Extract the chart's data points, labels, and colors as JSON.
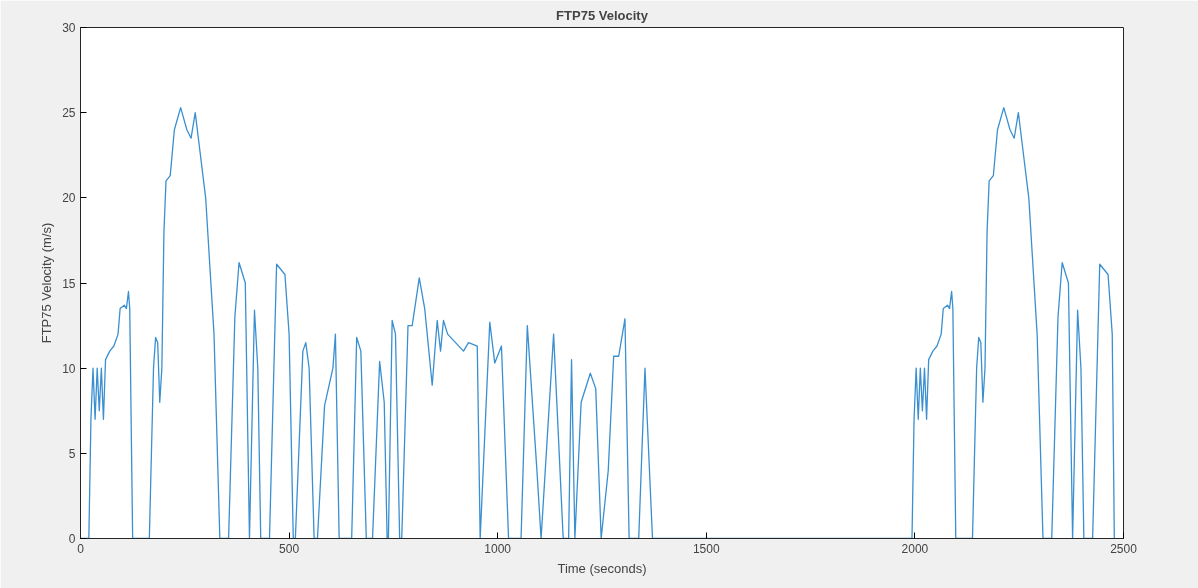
{
  "chart_data": {
    "type": "line",
    "title": "FTP75 Velocity",
    "xlabel": "Time (seconds)",
    "ylabel": "FTP75 Velocity (m/s)",
    "xlim": [
      0,
      2500
    ],
    "ylim": [
      0,
      30
    ],
    "xticks": [
      0,
      500,
      1000,
      1500,
      2000,
      2500
    ],
    "yticks": [
      0,
      5,
      10,
      15,
      20,
      25,
      30
    ],
    "grid": false,
    "marker": "none",
    "line_style": "solid",
    "series": [
      {
        "color": "#3a8fd0",
        "x": [
          0,
          20,
          25,
          30,
          35,
          40,
          45,
          50,
          55,
          60,
          70,
          80,
          90,
          95,
          105,
          110,
          115,
          118,
          125,
          165,
          175,
          180,
          185,
          190,
          195,
          200,
          205,
          215,
          225,
          240,
          255,
          265,
          275,
          285,
          300,
          320,
          334,
          355,
          370,
          380,
          395,
          405,
          417,
          425,
          432,
          453,
          470,
          490,
          500,
          510,
          515,
          533,
          540,
          548,
          560,
          568,
          585,
          605,
          611,
          620,
          650,
          662,
          672,
          685,
          700,
          717,
          728,
          735,
          738,
          747,
          755,
          765,
          770,
          785,
          795,
          812,
          825,
          843,
          855,
          863,
          870,
          880,
          918,
          930,
          951,
          958,
          981,
          993,
          1009,
          1026,
          1056,
          1071,
          1094,
          1104,
          1134,
          1157,
          1170,
          1177,
          1185,
          1200,
          1222,
          1235,
          1248,
          1265,
          1278,
          1290,
          1305,
          1315,
          1338,
          1353,
          1371,
          1993,
          1998,
          2003,
          2008,
          2013,
          2018,
          2023,
          2028,
          2033,
          2043,
          2053,
          2063,
          2068,
          2078,
          2083,
          2088,
          2091,
          2098,
          2138,
          2148,
          2153,
          2158,
          2163,
          2168,
          2173,
          2178,
          2188,
          2198,
          2213,
          2228,
          2238,
          2248,
          2258,
          2273,
          2293,
          2307,
          2328,
          2343,
          2353,
          2368,
          2378,
          2390,
          2398,
          2405,
          2426,
          2443,
          2463,
          2473,
          2478
        ],
        "values": [
          0,
          0,
          7,
          10,
          7,
          10,
          7.5,
          10,
          7,
          10.5,
          11,
          11.3,
          12,
          13.5,
          13.7,
          13.5,
          14.5,
          13.5,
          0,
          0,
          10,
          11.8,
          11.5,
          8,
          10,
          18,
          21,
          21.3,
          24,
          25.3,
          24,
          23.5,
          25,
          23,
          20,
          12,
          0,
          0,
          13,
          16.2,
          15,
          0,
          13.4,
          10,
          0,
          0,
          16.1,
          15.5,
          12,
          0,
          0,
          11,
          11.5,
          10,
          0,
          0,
          7.8,
          10,
          12,
          0,
          0,
          11.8,
          11,
          0,
          0,
          10.4,
          8,
          0,
          0,
          12.8,
          12,
          0,
          0,
          12.5,
          12.5,
          15.3,
          13.5,
          9,
          12.8,
          11,
          12.8,
          12,
          11,
          11.5,
          11.3,
          0,
          12.7,
          10.3,
          11.3,
          0,
          0,
          12.5,
          4,
          0,
          12,
          0,
          0,
          10.5,
          0,
          8,
          9.7,
          8.8,
          0,
          4,
          10.7,
          10.7,
          12.9,
          0,
          0,
          10,
          0,
          0,
          7,
          10,
          7,
          10,
          7.5,
          10,
          7,
          10.5,
          11,
          11.3,
          12,
          13.5,
          13.7,
          13.5,
          14.5,
          13.5,
          0,
          0,
          10,
          11.8,
          11.5,
          8,
          10,
          18,
          21,
          21.3,
          24,
          25.3,
          24,
          23.5,
          25,
          23,
          20,
          12,
          0,
          0,
          13,
          16.2,
          15,
          0,
          13.4,
          10,
          0,
          0,
          16.1,
          15.5,
          12,
          0
        ]
      }
    ]
  }
}
